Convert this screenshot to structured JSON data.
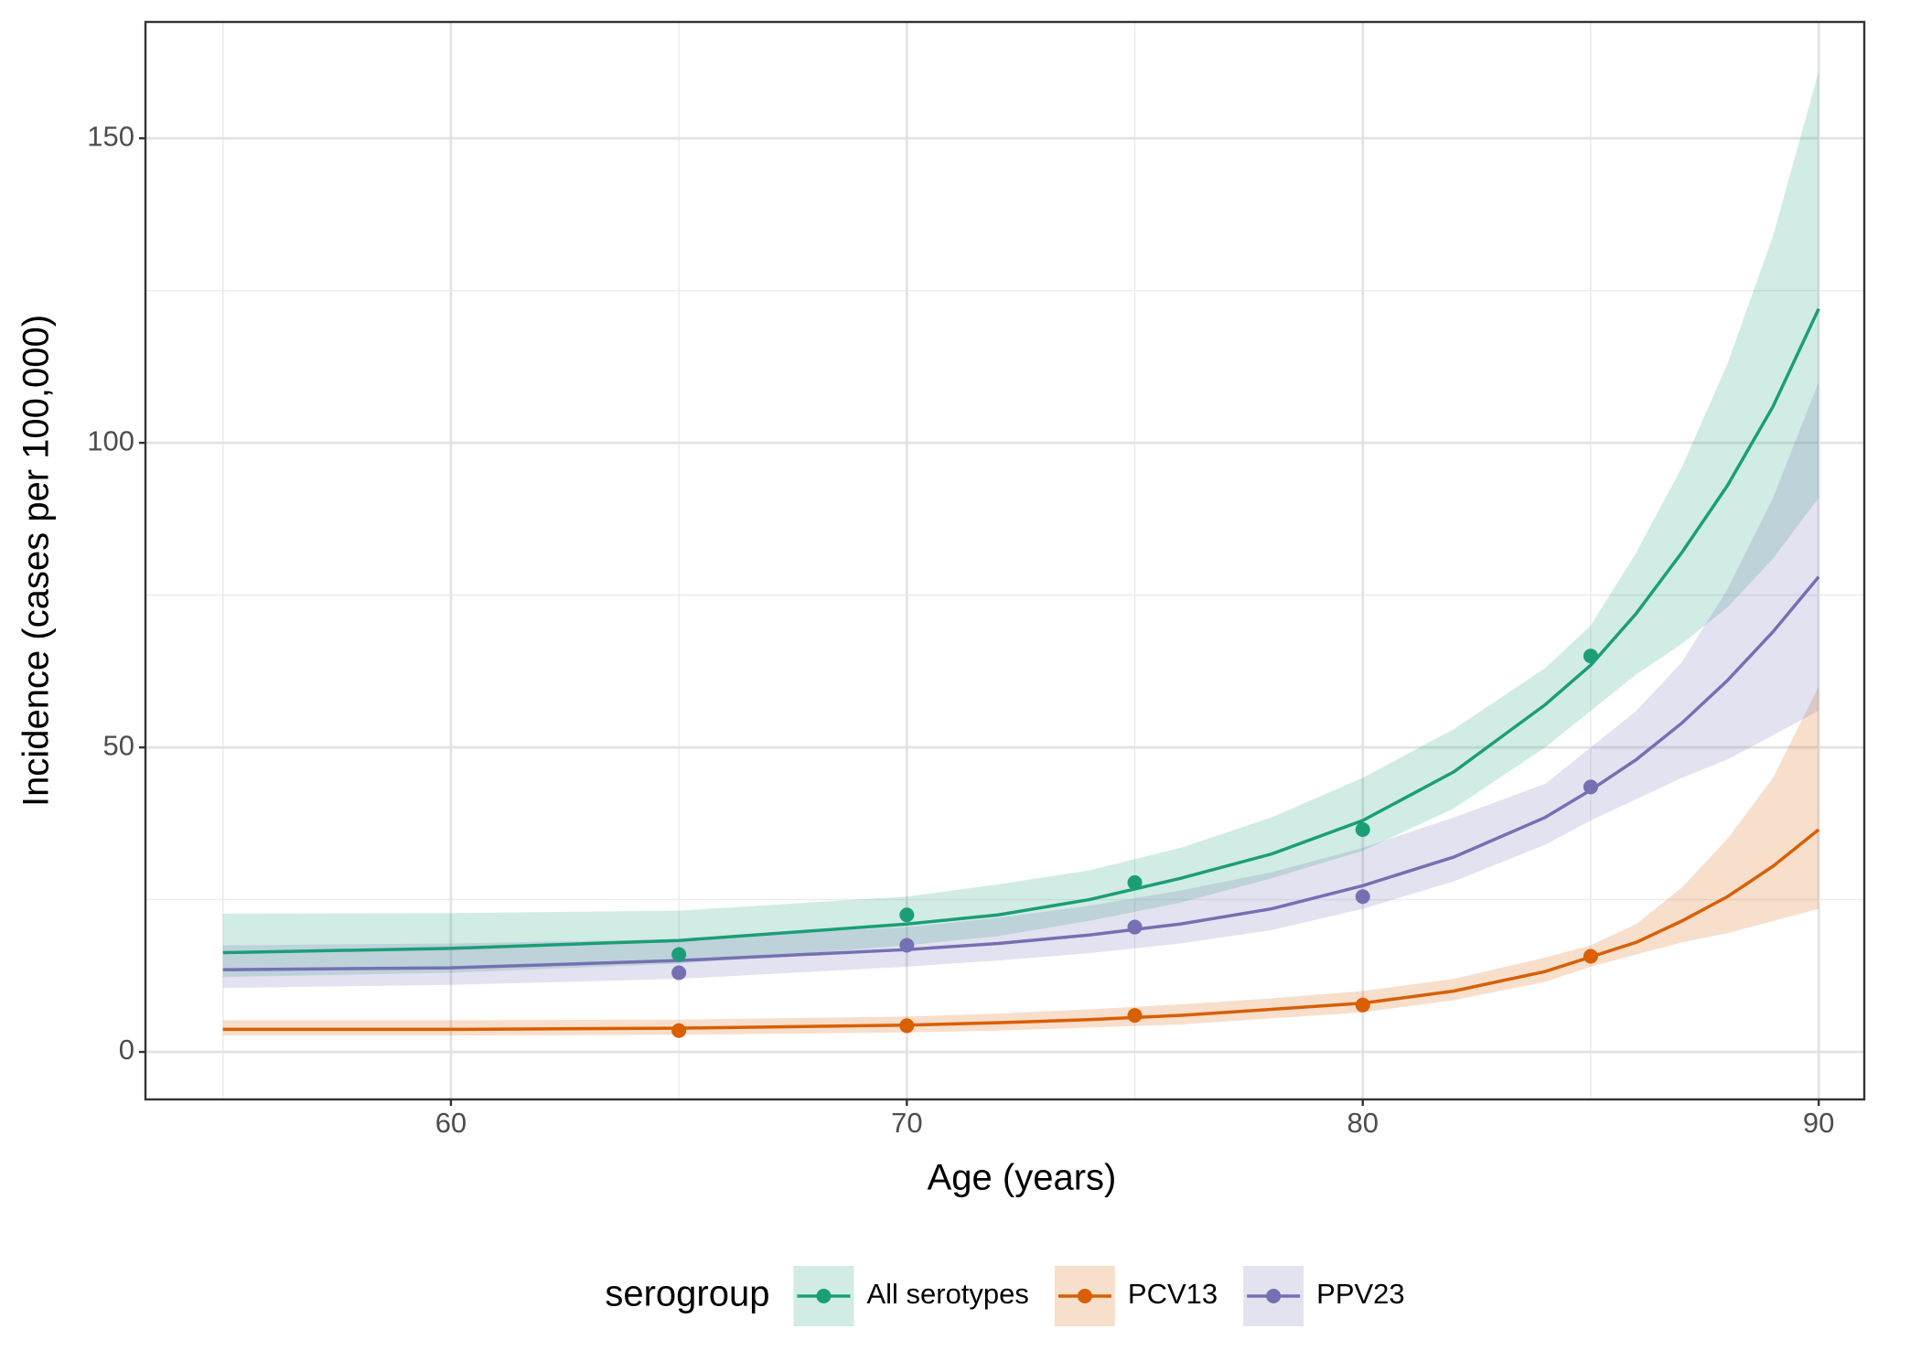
{
  "chart_data": {
    "type": "line",
    "x_label": "Age (years)",
    "y_label": "Incidence (cases per 100,000)",
    "legend_title": "serogroup",
    "legend_position": "bottom",
    "grid": true,
    "xlim": [
      53.3,
      91.0
    ],
    "ylim": [
      -7.8,
      169.1
    ],
    "xticks": [
      60,
      70,
      80,
      90
    ],
    "yticks": [
      0,
      50,
      100,
      150
    ],
    "xminor": [
      55,
      65,
      75,
      85
    ],
    "yminor": [
      25,
      75,
      125
    ],
    "ribbon_opacity": 0.2,
    "x": [
      55,
      60,
      65,
      70,
      72,
      74,
      76,
      78,
      80,
      82,
      84,
      85,
      86,
      87,
      88,
      89,
      90
    ],
    "point_x": [
      65,
      70,
      75,
      80,
      85
    ],
    "series": [
      {
        "name": "All serotypes",
        "color": "#1b9e77",
        "values": [
          16.3,
          17,
          18.3,
          21,
          22.5,
          25,
          28.5,
          32.5,
          38,
          46,
          57,
          63.5,
          72,
          82,
          93,
          106,
          122
        ],
        "lower": [
          12.3,
          13,
          14.5,
          17.5,
          19,
          21.5,
          24.5,
          28.5,
          33,
          40,
          50,
          56,
          62,
          67,
          73,
          81,
          91
        ],
        "upper": [
          22.7,
          22.8,
          23.2,
          25.5,
          27.5,
          29.8,
          33.5,
          38.5,
          45,
          53,
          63,
          70,
          82,
          96,
          113,
          134,
          161
        ],
        "point_values": [
          16,
          22.5,
          27.8,
          36.5,
          65
        ]
      },
      {
        "name": "PCV13",
        "color": "#d95f02",
        "values": [
          3.7,
          3.7,
          3.9,
          4.4,
          4.8,
          5.3,
          6,
          7,
          8,
          10,
          13.2,
          15.6,
          18,
          21.5,
          25.5,
          30.5,
          36.5
        ],
        "lower": [
          2.7,
          2.7,
          2.8,
          3.2,
          3.5,
          4,
          4.5,
          5.5,
          6.5,
          8.5,
          11.5,
          14,
          16,
          18,
          19.5,
          21.5,
          23.5
        ],
        "upper": [
          5.2,
          5.2,
          5.3,
          5.8,
          6.3,
          7,
          7.8,
          8.8,
          10,
          12,
          15.5,
          17.5,
          21,
          27,
          35,
          45,
          60
        ],
        "point_values": [
          3.5,
          4.3,
          6,
          7.7,
          15.7
        ]
      },
      {
        "name": "PPV23",
        "color": "#7570b3",
        "values": [
          13.5,
          13.8,
          15,
          16.8,
          17.8,
          19.2,
          21,
          23.5,
          27.3,
          32,
          38.5,
          43,
          48,
          54,
          61,
          69,
          78
        ],
        "lower": [
          10.5,
          11,
          12,
          14,
          15,
          16.2,
          17.8,
          20,
          23.5,
          28,
          34,
          38,
          41.5,
          45,
          48,
          52,
          56
        ],
        "upper": [
          17.5,
          17.8,
          18.5,
          20.5,
          22,
          24,
          26.5,
          29.5,
          33.5,
          38.5,
          44,
          50,
          56,
          64,
          76,
          91,
          110
        ],
        "point_values": [
          13,
          17.5,
          20.5,
          25.5,
          43.5
        ]
      }
    ]
  }
}
